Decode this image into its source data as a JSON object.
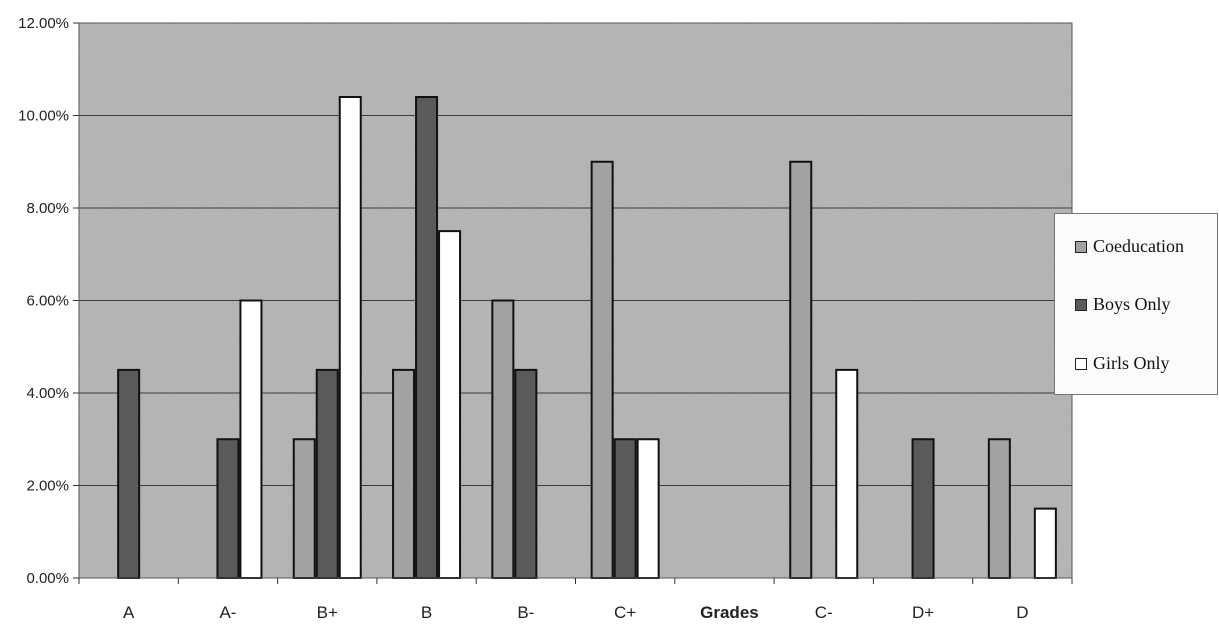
{
  "chart_data": {
    "type": "bar",
    "title": "",
    "xlabel": "Grades",
    "ylabel": "",
    "ylim": [
      0,
      0.12
    ],
    "yticks": [
      "0.00%",
      "2.00%",
      "4.00%",
      "6.00%",
      "8.00%",
      "10.00%",
      "12.00%"
    ],
    "categories": [
      "A",
      "A-",
      "B+",
      "B",
      "B-",
      "C+",
      "C-",
      "D+",
      "D"
    ],
    "series": [
      {
        "name": "Coeducation",
        "values": [
          0,
          0,
          0.03,
          0.045,
          0.06,
          0.09,
          0.09,
          0,
          0.03
        ]
      },
      {
        "name": "Boys Only",
        "values": [
          0.045,
          0.03,
          0.045,
          0.104,
          0.045,
          0.03,
          0,
          0.03,
          0
        ]
      },
      {
        "name": "Girls Only",
        "values": [
          0,
          0.06,
          0.104,
          0.075,
          0,
          0.03,
          0.045,
          0,
          0.015
        ]
      }
    ],
    "grid": true,
    "legend_position": "right",
    "colors": {
      "plot_background": "#b3b3b3",
      "Coeducation": "#a2a2a2",
      "Boys Only": "#5a5a5a",
      "Girls Only": "#ffffff",
      "gridline": "#3c3c3c"
    }
  }
}
